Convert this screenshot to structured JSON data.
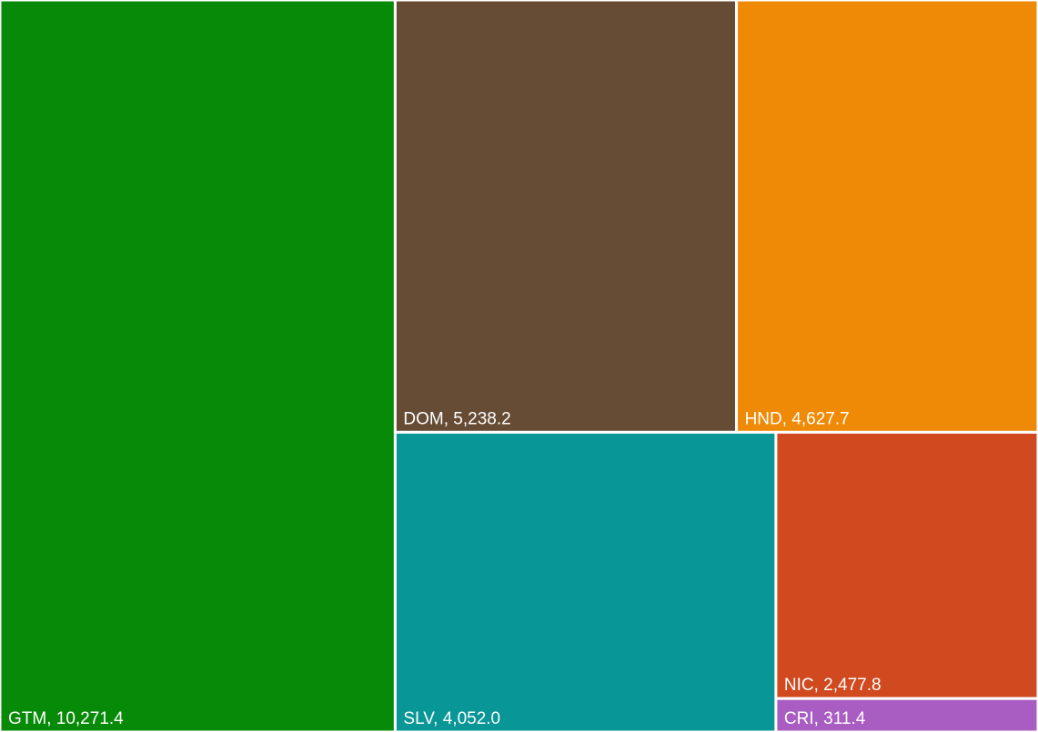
{
  "chart_data": {
    "type": "treemap",
    "values": [
      10271.4,
      5238.2,
      4627.7,
      4052.0,
      2477.8,
      311.4
    ],
    "value_labels": [
      "GTM, 10,271.4",
      "DOM, 5,238.2",
      "HND, 4,627.7",
      "SLV, 4,052.0",
      "NIC, 2,477.8",
      "CRI, 311.4"
    ],
    "colors": [
      "#078a07",
      "#674c35",
      "#ef8a07",
      "#089696",
      "#d0491f",
      "#a95dc2"
    ]
  }
}
